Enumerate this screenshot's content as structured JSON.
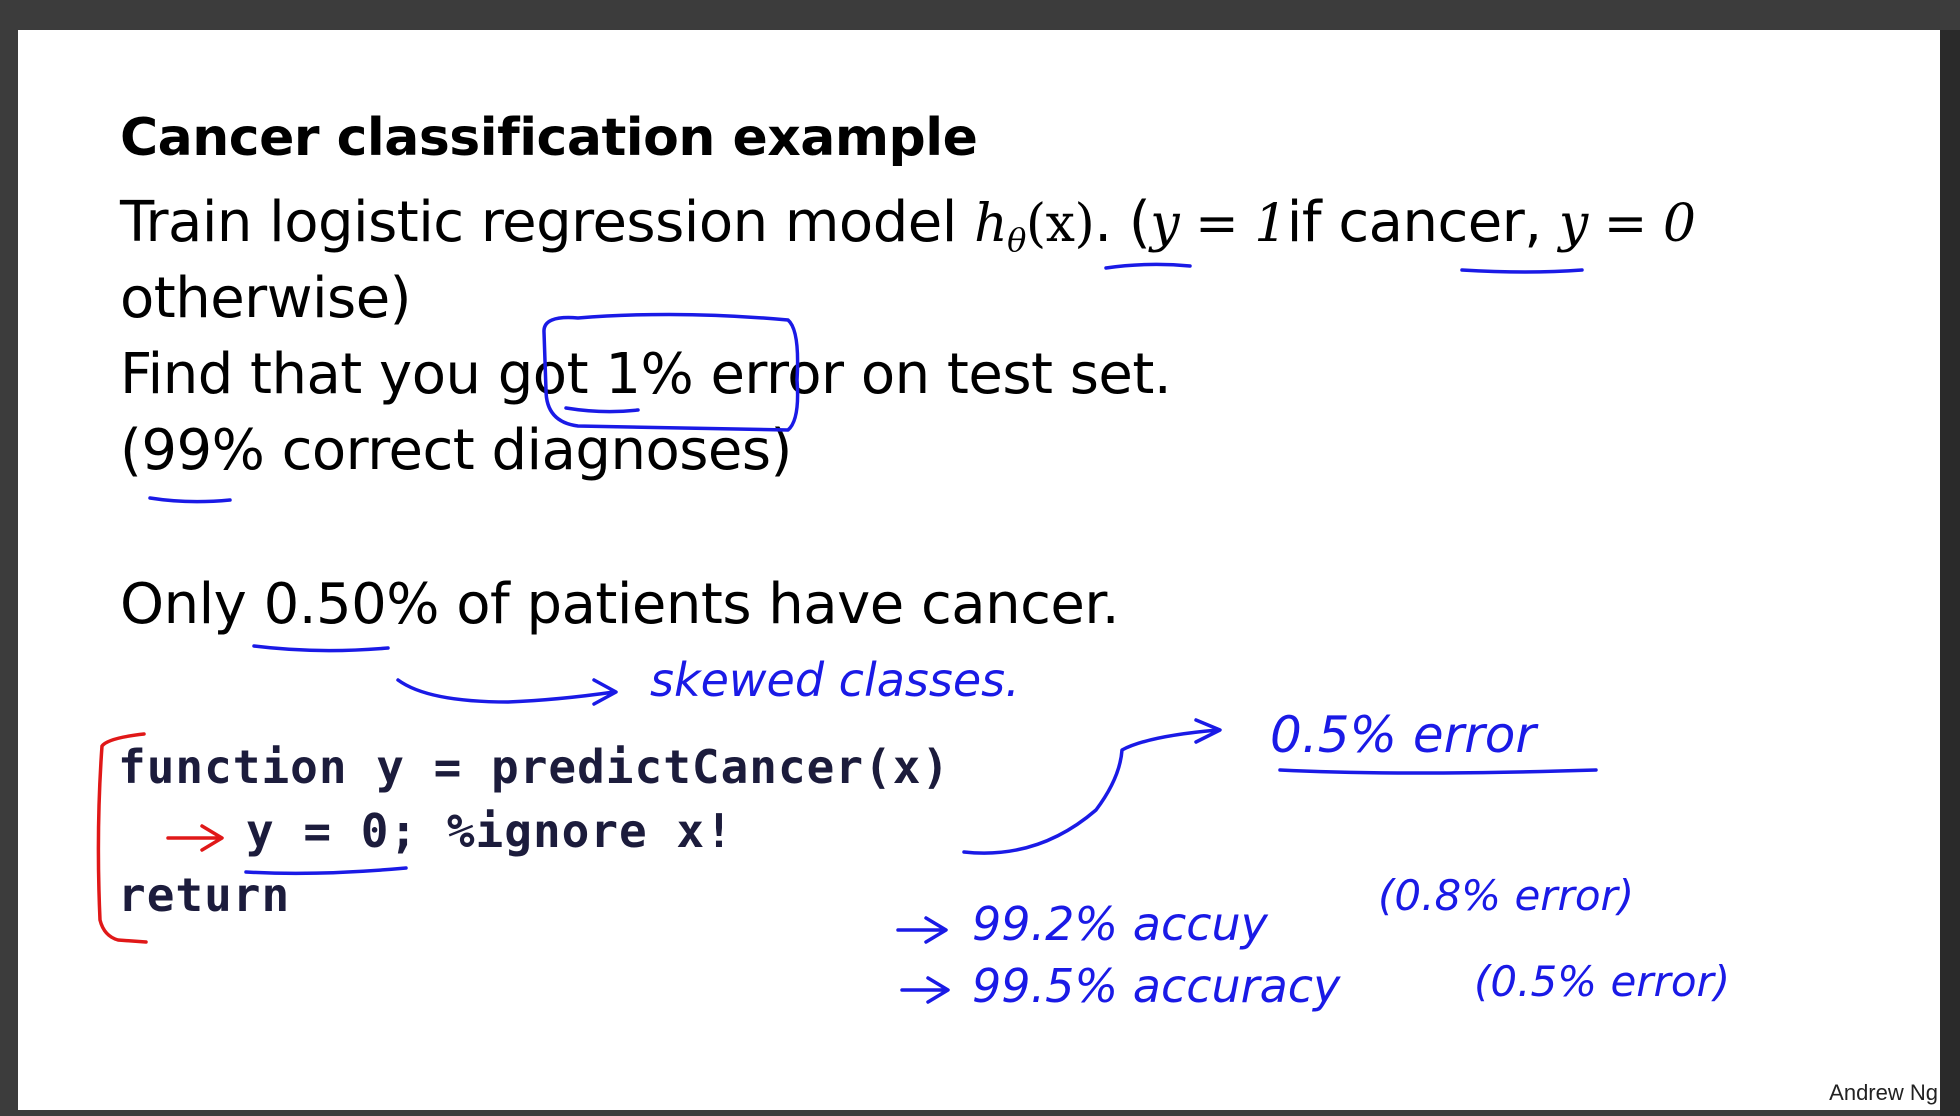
{
  "slide": {
    "title": "Cancer classification example",
    "line1": {
      "prefix": "Train logistic regression model ",
      "h": "h",
      "theta": "θ",
      "paren_x": "(x)",
      "after_h": ". (",
      "y1": "y = 1",
      "mid": "if cancer, ",
      "y0": "y = 0"
    },
    "line2": "otherwise)",
    "line3": {
      "before": "Find that you got ",
      "boxed": "1% error",
      "after": " on test set."
    },
    "line4": "(99% correct diagnoses)",
    "line5": "Only 0.50% of patients have cancer.",
    "code": {
      "line1": "function y = predictCancer(x)",
      "line2": "y = 0; %ignore x!",
      "line3": "return"
    },
    "credit": "Andrew Ng"
  },
  "annotations": {
    "skewed": "skewed classes.",
    "half_error": "0.5% error",
    "acc1": "99.2% accuy",
    "err1": "(0.8% error)",
    "acc2": "99.5% accuracy",
    "err2": "(0.5% error)"
  },
  "colors": {
    "ink_blue": "#1a1ae6",
    "ink_red": "#e01818"
  }
}
